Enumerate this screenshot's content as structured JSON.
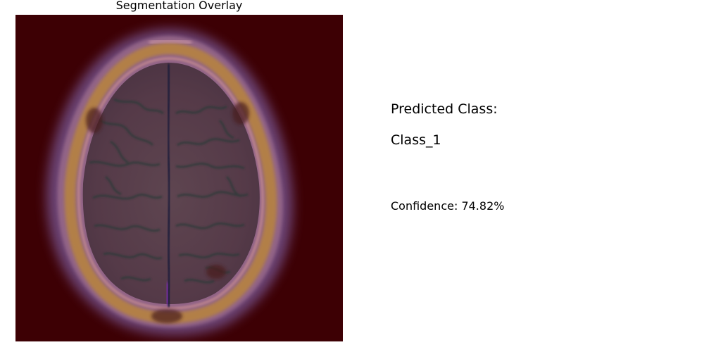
{
  "overlay": {
    "title": "Segmentation Overlay"
  },
  "result": {
    "heading": "Predicted Class:",
    "class_name": "Class_1",
    "confidence_text": "Confidence: 74.82%",
    "confidence": 74.82
  },
  "colors": {
    "background_mask": "#3d0004",
    "brain_tint": "#5a3a45",
    "skull_ring": "#a0703a",
    "halo": "#6a4a8a"
  }
}
